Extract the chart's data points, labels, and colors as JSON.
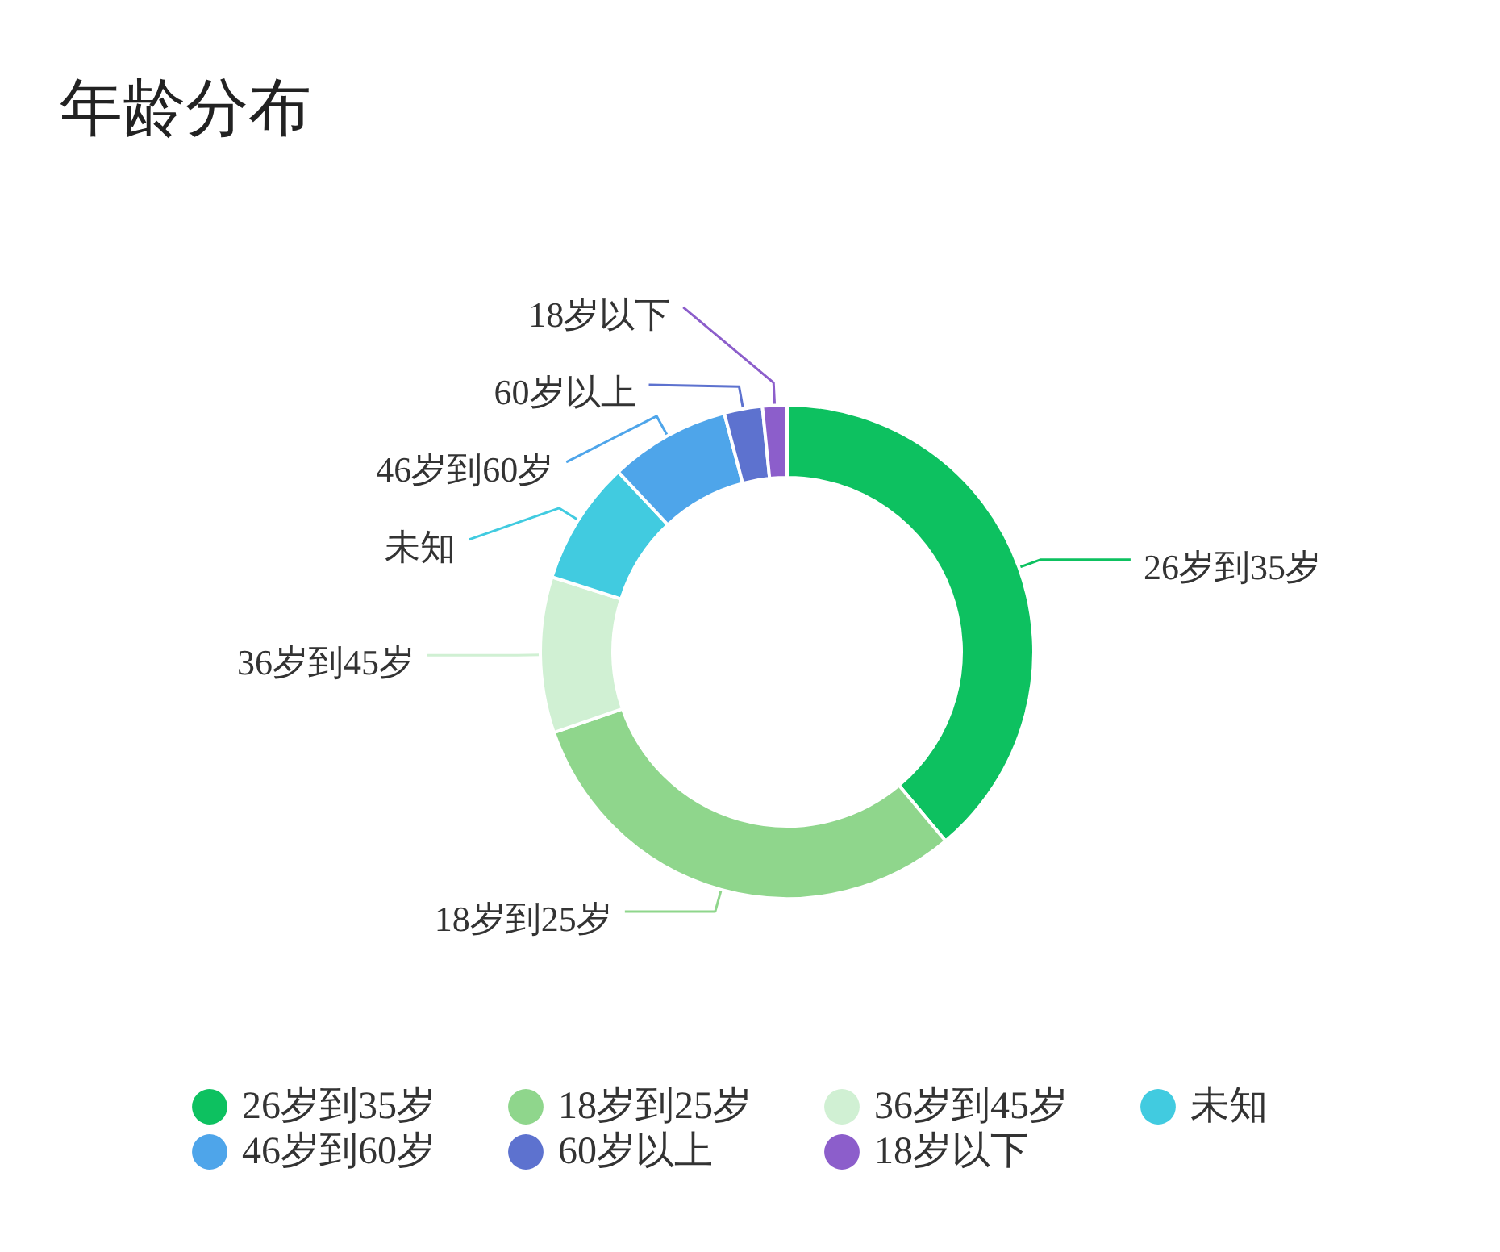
{
  "chart_data": {
    "type": "donut",
    "title": "年龄分布",
    "categories": [
      "26岁到35岁",
      "18岁到25岁",
      "36岁到45岁",
      "未知",
      "46岁到60岁",
      "60岁以上",
      "18岁以下"
    ],
    "values": [
      38.9,
      30.8,
      10.2,
      8.1,
      7.9,
      2.5,
      1.6
    ],
    "colors": [
      "#0dc160",
      "#8fd68c",
      "#d0f0d3",
      "#41cbe0",
      "#4ea5ea",
      "#5d72cf",
      "#8c5ecb"
    ],
    "legend": "bottom"
  }
}
